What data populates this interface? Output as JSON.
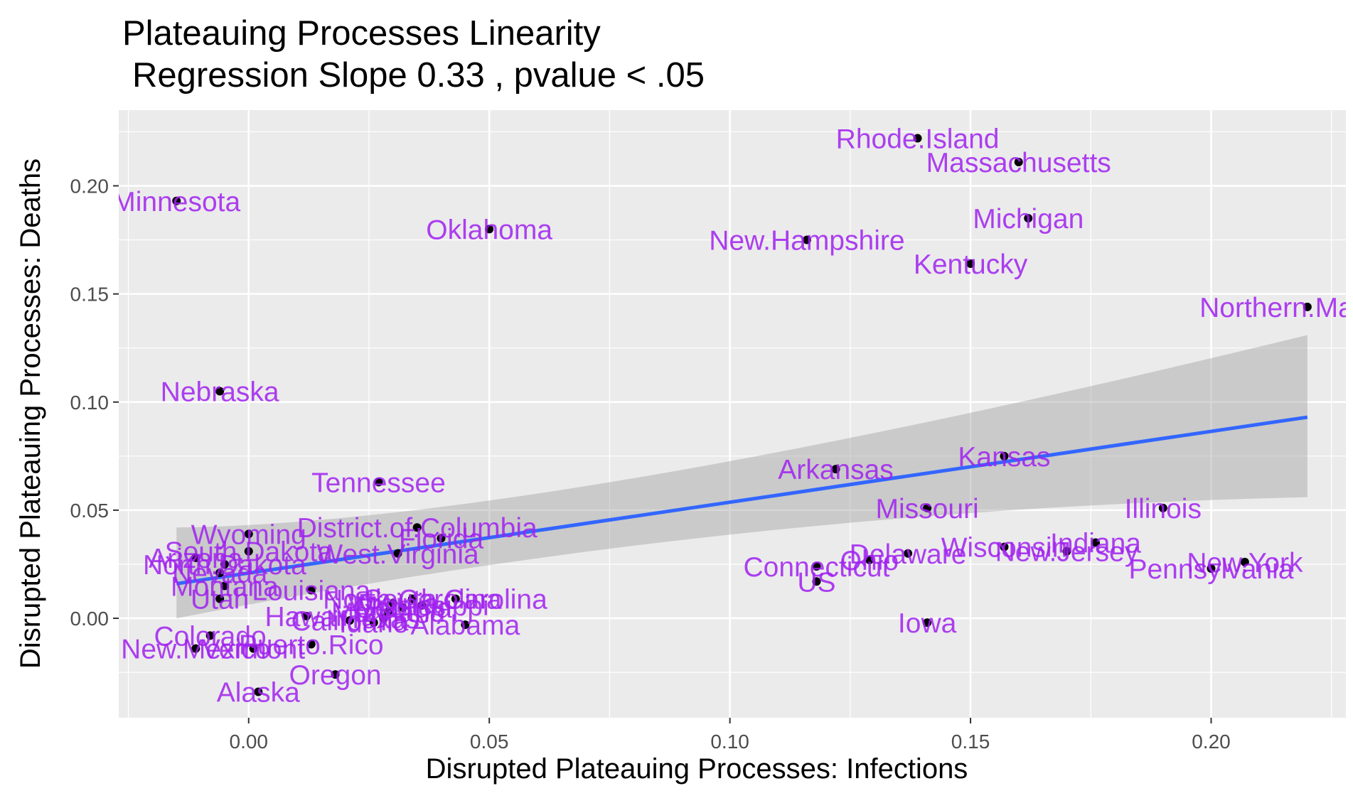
{
  "chart_data": {
    "type": "scatter",
    "title": "Plateauing Processes Linearity",
    "subtitle": "Regression Slope 0.33 , pvalue  < .05",
    "xlabel": "Disrupted Plateauing Processes: Infections",
    "ylabel": "Disrupted Plateauing Processes: Deaths",
    "xlim": [
      -0.027,
      0.228
    ],
    "ylim": [
      -0.046,
      0.235
    ],
    "x_ticks": [
      0.0,
      0.05,
      0.1,
      0.15,
      0.2
    ],
    "x_tick_labels": [
      "0.00",
      "0.05",
      "0.10",
      "0.15",
      "0.20"
    ],
    "y_ticks": [
      0.0,
      0.05,
      0.1,
      0.15,
      0.2
    ],
    "y_tick_labels": [
      "0.00",
      "0.05",
      "0.10",
      "0.15",
      "0.20"
    ],
    "grid": true,
    "colors": {
      "panel_background": "#ebebeb",
      "grid": "#ffffff",
      "point": "#000000",
      "label": "#a020f0",
      "regression_line": "#3366ff",
      "confidence_band": "#999999"
    },
    "regression": {
      "slope": 0.33,
      "x_range": [
        -0.015,
        0.22
      ],
      "y_at_x_range": [
        0.016,
        0.093
      ],
      "ci_lower": [
        0.0,
        0.056
      ],
      "ci_upper": [
        0.042,
        0.131
      ]
    },
    "points": [
      {
        "label": "Minnesota",
        "x": -0.015,
        "y": 0.193
      },
      {
        "label": "Oklahoma",
        "x": 0.05,
        "y": 0.18
      },
      {
        "label": "Rhode.Island",
        "x": 0.139,
        "y": 0.222
      },
      {
        "label": "Massachusetts",
        "x": 0.16,
        "y": 0.211
      },
      {
        "label": "Michigan",
        "x": 0.162,
        "y": 0.185
      },
      {
        "label": "New.Hampshire",
        "x": 0.116,
        "y": 0.175
      },
      {
        "label": "Kentucky",
        "x": 0.15,
        "y": 0.164
      },
      {
        "label": "Northern.Mariana",
        "x": 0.22,
        "y": 0.144
      },
      {
        "label": "Nebraska",
        "x": -0.006,
        "y": 0.105
      },
      {
        "label": "Arkansas",
        "x": 0.122,
        "y": 0.069
      },
      {
        "label": "Kansas",
        "x": 0.157,
        "y": 0.075
      },
      {
        "label": "Tennessee",
        "x": 0.027,
        "y": 0.063
      },
      {
        "label": "Missouri",
        "x": 0.141,
        "y": 0.051
      },
      {
        "label": "Illinois",
        "x": 0.19,
        "y": 0.051
      },
      {
        "label": "District.of.Columbia",
        "x": 0.035,
        "y": 0.042
      },
      {
        "label": "Wyoming",
        "x": 0.0,
        "y": 0.039
      },
      {
        "label": "Florida",
        "x": 0.04,
        "y": 0.037
      },
      {
        "label": "Indiana",
        "x": 0.176,
        "y": 0.035
      },
      {
        "label": "Wisconsin",
        "x": 0.157,
        "y": 0.033
      },
      {
        "label": "New.Jersey",
        "x": 0.17,
        "y": 0.031
      },
      {
        "label": "South.Dakota",
        "x": 0.0,
        "y": 0.031
      },
      {
        "label": "West.Virginia",
        "x": 0.031,
        "y": 0.03
      },
      {
        "label": "Delaware",
        "x": 0.137,
        "y": 0.03
      },
      {
        "label": "Arizona",
        "x": -0.011,
        "y": 0.028
      },
      {
        "label": "Ohio",
        "x": 0.129,
        "y": 0.027
      },
      {
        "label": "New.York",
        "x": 0.207,
        "y": 0.026
      },
      {
        "label": "North.Dakota",
        "x": -0.005,
        "y": 0.025
      },
      {
        "label": "Connecticut",
        "x": 0.118,
        "y": 0.024
      },
      {
        "label": "Pennsylvania",
        "x": 0.2,
        "y": 0.023
      },
      {
        "label": "Nevada",
        "x": -0.006,
        "y": 0.021
      },
      {
        "label": "US",
        "x": 0.118,
        "y": 0.017
      },
      {
        "label": "Montana",
        "x": -0.005,
        "y": 0.015
      },
      {
        "label": "Louisiana",
        "x": 0.013,
        "y": 0.013
      },
      {
        "label": "Utah",
        "x": -0.006,
        "y": 0.009
      },
      {
        "label": "South.Carolina",
        "x": 0.043,
        "y": 0.009
      },
      {
        "label": "North.Carolina",
        "x": 0.034,
        "y": 0.009
      },
      {
        "label": "Virginia",
        "x": 0.03,
        "y": 0.007
      },
      {
        "label": "Mississippi",
        "x": 0.036,
        "y": 0.006
      },
      {
        "label": "Georgia",
        "x": 0.032,
        "y": 0.005
      },
      {
        "label": "Maryland",
        "x": 0.029,
        "y": 0.003
      },
      {
        "label": "Hawaii",
        "x": 0.012,
        "y": 0.001
      },
      {
        "label": "Texas",
        "x": 0.028,
        "y": 0.0
      },
      {
        "label": "California",
        "x": 0.021,
        "y": -0.001
      },
      {
        "label": "Idaho",
        "x": 0.026,
        "y": -0.002
      },
      {
        "label": "Alabama",
        "x": 0.045,
        "y": -0.003
      },
      {
        "label": "Iowa",
        "x": 0.141,
        "y": -0.002
      },
      {
        "label": "Colorado",
        "x": -0.008,
        "y": -0.008
      },
      {
        "label": "Puerto.Rico",
        "x": 0.013,
        "y": -0.012
      },
      {
        "label": "New.Mexico",
        "x": -0.011,
        "y": -0.014
      },
      {
        "label": "Vermont",
        "x": 0.001,
        "y": -0.014
      },
      {
        "label": "Oregon",
        "x": 0.018,
        "y": -0.026
      },
      {
        "label": "Alaska",
        "x": 0.002,
        "y": -0.034
      }
    ]
  }
}
